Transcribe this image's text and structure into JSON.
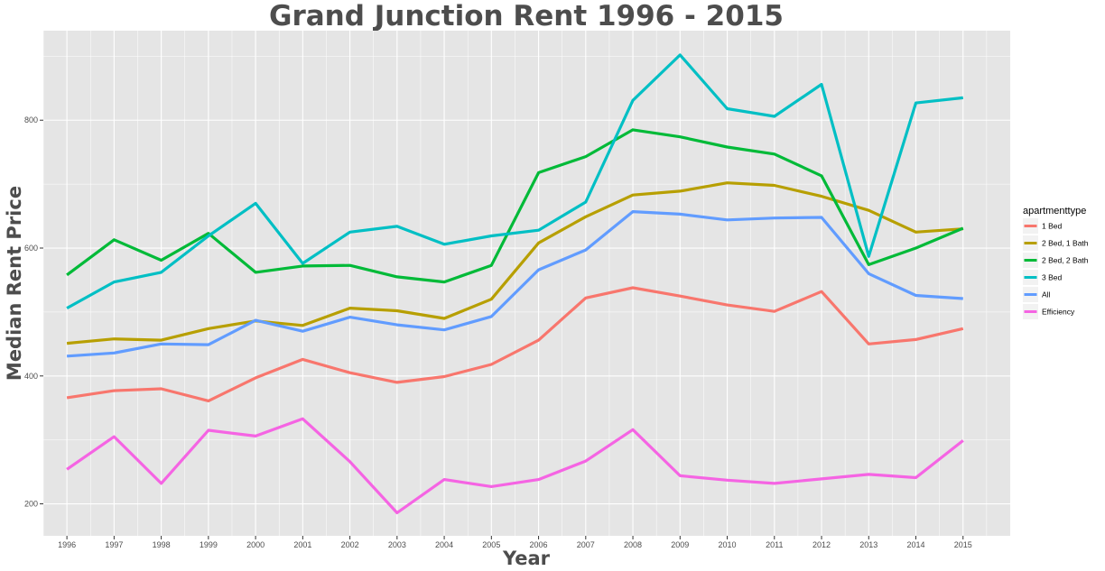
{
  "chart_data": {
    "type": "line",
    "title": "Grand Junction Rent 1996 - 2015",
    "xlabel": "Year",
    "ylabel": "Median Rent Price",
    "x": [
      1996,
      1997,
      1998,
      1999,
      2000,
      2001,
      2002,
      2003,
      2004,
      2005,
      2006,
      2007,
      2008,
      2009,
      2010,
      2011,
      2012,
      2013,
      2014,
      2015
    ],
    "xlim": [
      1995.5,
      2016.0
    ],
    "ylim": [
      150,
      940
    ],
    "yticks": [
      200,
      400,
      600,
      800
    ],
    "grid": true,
    "legend": {
      "title": "apartmenttype",
      "position": "right"
    },
    "series": [
      {
        "name": "1 Bed",
        "color": "#F8766D",
        "values": [
          366,
          377,
          380,
          361,
          397,
          426,
          405,
          390,
          399,
          418,
          456,
          522,
          538,
          525,
          511,
          501,
          532,
          450,
          457,
          474
        ]
      },
      {
        "name": "2 Bed, 1 Bath",
        "color": "#B79F00",
        "values": [
          451,
          458,
          456,
          474,
          486,
          479,
          506,
          502,
          490,
          520,
          608,
          649,
          683,
          689,
          702,
          698,
          681,
          659,
          625,
          630
        ]
      },
      {
        "name": "2 Bed, 2 Bath",
        "color": "#00BA38",
        "values": [
          558,
          613,
          581,
          623,
          562,
          572,
          573,
          555,
          547,
          573,
          718,
          743,
          785,
          774,
          758,
          747,
          713,
          574,
          600,
          631
        ]
      },
      {
        "name": "3 Bed",
        "color": "#00BFC4",
        "values": [
          506,
          547,
          562,
          619,
          670,
          576,
          625,
          634,
          606,
          619,
          628,
          672,
          831,
          902,
          818,
          806,
          856,
          587,
          827,
          835
        ]
      },
      {
        "name": "All",
        "color": "#619CFF",
        "values": [
          431,
          436,
          450,
          449,
          487,
          470,
          492,
          480,
          472,
          493,
          566,
          597,
          657,
          653,
          644,
          647,
          648,
          560,
          526,
          521
        ]
      },
      {
        "name": "Efficiency",
        "color": "#F564E3",
        "values": [
          254,
          305,
          232,
          315,
          306,
          333,
          266,
          186,
          238,
          227,
          238,
          267,
          316,
          244,
          237,
          232,
          239,
          246,
          241,
          299
        ]
      }
    ]
  }
}
